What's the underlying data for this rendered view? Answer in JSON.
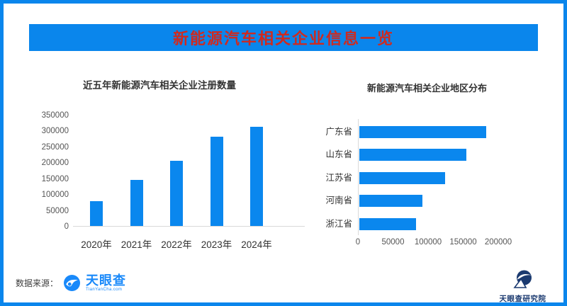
{
  "banner": {
    "title": "新能源汽车相关企业信息一览"
  },
  "chart_data": [
    {
      "type": "bar",
      "title": "近五年新能源汽车相关企业注册数量",
      "categories": [
        "2020年",
        "2021年",
        "2022年",
        "2023年",
        "2024年"
      ],
      "values": [
        78000,
        146000,
        205000,
        282000,
        312000
      ],
      "xlabel": "",
      "ylabel": "",
      "ylim": [
        0,
        350000
      ],
      "y_ticks": [
        0,
        50000,
        100000,
        150000,
        200000,
        250000,
        300000,
        350000
      ],
      "grid": false,
      "legend": "none",
      "bar_color": "#0a87ee"
    },
    {
      "type": "bar-horizontal",
      "title": "新能源汽车相关企业地区分布",
      "categories": [
        "广东省",
        "山东省",
        "江苏省",
        "河南省",
        "浙江省"
      ],
      "values": [
        181000,
        152000,
        122000,
        90000,
        81000
      ],
      "xlabel": "",
      "ylabel": "",
      "xlim": [
        0,
        200000
      ],
      "x_ticks": [
        0,
        50000,
        100000,
        150000,
        200000
      ],
      "grid": false,
      "legend": "none",
      "bar_color": "#0a87ee"
    }
  ],
  "footer": {
    "source_label": "数据来源：",
    "tianyancha_logo_text": "天眼查",
    "tianyancha_logo_subtext": "TianYanCha.com",
    "institute_name": "天眼查研究院"
  },
  "colors": {
    "frame_blue": "#0a86ec",
    "banner_bg": "#0a86ec",
    "banner_text_red": "#cf2a1f",
    "bar_blue": "#0a87ee",
    "axis_line": "#d9d9d9",
    "tianyancha_blue": "#1989fa",
    "institute_navy": "#1b3a70",
    "text_dark": "#333333",
    "text_gray": "#555555"
  }
}
